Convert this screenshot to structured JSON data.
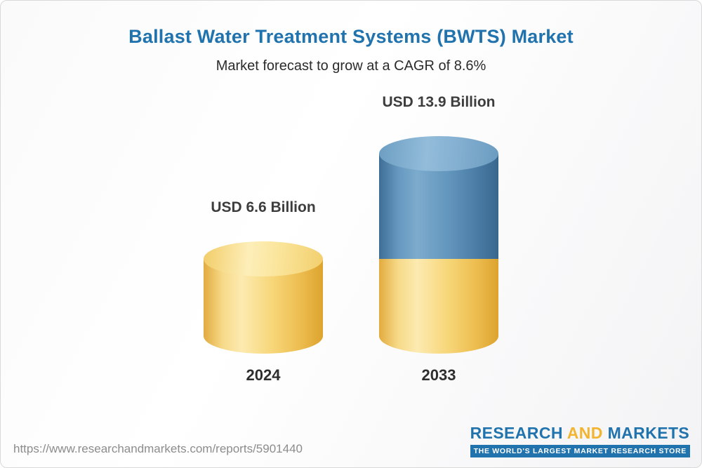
{
  "header": {
    "title": "Ballast Water Treatment Systems (BWTS) Market",
    "subtitle": "Market forecast to grow at a CAGR of 8.6%"
  },
  "chart_data": {
    "type": "bar",
    "variant": "stacked-cylinder-3d",
    "categories": [
      "2024",
      "2033"
    ],
    "values": [
      6.6,
      13.9
    ],
    "value_labels": [
      "USD 6.6 Billion",
      "USD 13.9 Billion"
    ],
    "unit": "USD Billion",
    "cagr": "8.6%",
    "title": "Ballast Water Treatment Systems (BWTS) Market",
    "subtitle": "Market forecast to grow at a CAGR of 8.6%",
    "ylim": [
      0,
      13.9
    ],
    "legend": "none",
    "grid": false,
    "colors": {
      "base_segment": "#F6CE63",
      "growth_segment": "#4C80AA",
      "title_text": "#2173AE",
      "label_text": "#3D3D3D"
    },
    "notes": "2033 bar is stacked: bottom yellow segment equals 2024 value (6.6), top blue segment is growth to 13.9"
  },
  "footer": {
    "url": "https://www.researchandmarkets.com/reports/5901440",
    "logo": {
      "research": "RESEARCH",
      "and": "AND",
      "markets": "MARKETS",
      "tagline": "THE WORLD'S LARGEST MARKET RESEARCH STORE"
    }
  }
}
